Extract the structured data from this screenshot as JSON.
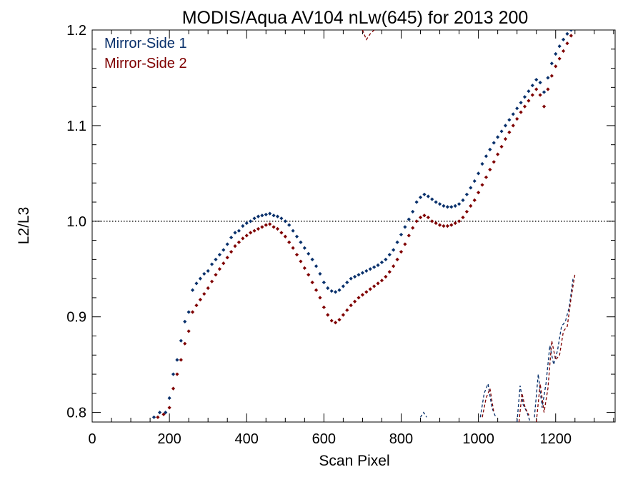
{
  "chart_data": {
    "type": "scatter",
    "title": "MODIS/Aqua AV104 nLw(645) for 2013 200",
    "xlabel": "Scan Pixel",
    "ylabel": "L2/L3",
    "xlim": [
      0,
      1354
    ],
    "ylim": [
      0.79,
      1.2
    ],
    "x_ticks": [
      0,
      200,
      400,
      600,
      800,
      1000,
      1200
    ],
    "y_ticks": [
      0.8,
      0.9,
      1.0,
      1.1,
      1.2
    ],
    "reference_line": 1.0,
    "grid": false,
    "legend_position": "top-left",
    "series": [
      {
        "name": "Mirror-Side 1",
        "color": "#08306b",
        "points": [
          [
            160,
            0.795
          ],
          [
            175,
            0.8
          ],
          [
            190,
            0.8
          ],
          [
            200,
            0.815
          ],
          [
            210,
            0.84
          ],
          [
            220,
            0.855
          ],
          [
            230,
            0.875
          ],
          [
            240,
            0.895
          ],
          [
            250,
            0.905
          ],
          [
            260,
            0.928
          ],
          [
            270,
            0.935
          ],
          [
            280,
            0.94
          ],
          [
            290,
            0.945
          ],
          [
            300,
            0.948
          ],
          [
            310,
            0.955
          ],
          [
            320,
            0.96
          ],
          [
            330,
            0.965
          ],
          [
            340,
            0.97
          ],
          [
            350,
            0.976
          ],
          [
            360,
            0.983
          ],
          [
            370,
            0.988
          ],
          [
            380,
            0.99
          ],
          [
            390,
            0.995
          ],
          [
            400,
            0.998
          ],
          [
            410,
            1.0
          ],
          [
            420,
            1.003
          ],
          [
            430,
            1.005
          ],
          [
            440,
            1.006
          ],
          [
            450,
            1.007
          ],
          [
            460,
            1.008
          ],
          [
            470,
            1.006
          ],
          [
            480,
            1.005
          ],
          [
            490,
            1.003
          ],
          [
            500,
            1.0
          ],
          [
            510,
            0.996
          ],
          [
            520,
            0.99
          ],
          [
            530,
            0.984
          ],
          [
            540,
            0.978
          ],
          [
            550,
            0.972
          ],
          [
            560,
            0.966
          ],
          [
            570,
            0.96
          ],
          [
            580,
            0.953
          ],
          [
            590,
            0.945
          ],
          [
            600,
            0.936
          ],
          [
            610,
            0.93
          ],
          [
            620,
            0.927
          ],
          [
            630,
            0.926
          ],
          [
            640,
            0.928
          ],
          [
            650,
            0.932
          ],
          [
            660,
            0.936
          ],
          [
            670,
            0.94
          ],
          [
            680,
            0.942
          ],
          [
            690,
            0.944
          ],
          [
            700,
            0.946
          ],
          [
            710,
            0.948
          ],
          [
            720,
            0.95
          ],
          [
            730,
            0.952
          ],
          [
            740,
            0.954
          ],
          [
            750,
            0.957
          ],
          [
            760,
            0.96
          ],
          [
            770,
            0.965
          ],
          [
            780,
            0.97
          ],
          [
            790,
            0.978
          ],
          [
            800,
            0.986
          ],
          [
            810,
            0.994
          ],
          [
            820,
            1.002
          ],
          [
            830,
            1.01
          ],
          [
            840,
            1.02
          ],
          [
            850,
            1.025
          ],
          [
            860,
            1.028
          ],
          [
            870,
            1.026
          ],
          [
            880,
            1.023
          ],
          [
            890,
            1.02
          ],
          [
            900,
            1.018
          ],
          [
            910,
            1.016
          ],
          [
            920,
            1.015
          ],
          [
            930,
            1.015
          ],
          [
            940,
            1.016
          ],
          [
            950,
            1.018
          ],
          [
            960,
            1.022
          ],
          [
            970,
            1.028
          ],
          [
            980,
            1.035
          ],
          [
            990,
            1.042
          ],
          [
            1000,
            1.05
          ],
          [
            1010,
            1.06
          ],
          [
            1020,
            1.068
          ],
          [
            1030,
            1.075
          ],
          [
            1040,
            1.082
          ],
          [
            1050,
            1.088
          ],
          [
            1060,
            1.094
          ],
          [
            1070,
            1.1
          ],
          [
            1080,
            1.106
          ],
          [
            1090,
            1.112
          ],
          [
            1100,
            1.118
          ],
          [
            1110,
            1.124
          ],
          [
            1120,
            1.13
          ],
          [
            1130,
            1.136
          ],
          [
            1140,
            1.142
          ],
          [
            1150,
            1.148
          ],
          [
            1160,
            1.145
          ],
          [
            1170,
            1.135
          ],
          [
            1180,
            1.15
          ],
          [
            1190,
            1.165
          ],
          [
            1200,
            1.175
          ],
          [
            1210,
            1.183
          ],
          [
            1220,
            1.19
          ],
          [
            1230,
            1.196
          ],
          [
            1240,
            1.2
          ]
        ]
      },
      {
        "name": "Mirror-Side 2",
        "color": "#7f0000",
        "points": [
          [
            170,
            0.795
          ],
          [
            185,
            0.798
          ],
          [
            200,
            0.805
          ],
          [
            210,
            0.825
          ],
          [
            220,
            0.84
          ],
          [
            230,
            0.855
          ],
          [
            240,
            0.872
          ],
          [
            250,
            0.885
          ],
          [
            260,
            0.905
          ],
          [
            270,
            0.912
          ],
          [
            280,
            0.918
          ],
          [
            290,
            0.924
          ],
          [
            300,
            0.93
          ],
          [
            310,
            0.937
          ],
          [
            320,
            0.944
          ],
          [
            330,
            0.95
          ],
          [
            340,
            0.956
          ],
          [
            350,
            0.962
          ],
          [
            360,
            0.968
          ],
          [
            370,
            0.974
          ],
          [
            380,
            0.978
          ],
          [
            390,
            0.982
          ],
          [
            400,
            0.985
          ],
          [
            410,
            0.988
          ],
          [
            420,
            0.99
          ],
          [
            430,
            0.992
          ],
          [
            440,
            0.994
          ],
          [
            450,
            0.996
          ],
          [
            460,
            0.997
          ],
          [
            470,
            0.994
          ],
          [
            480,
            0.992
          ],
          [
            490,
            0.988
          ],
          [
            500,
            0.984
          ],
          [
            510,
            0.978
          ],
          [
            520,
            0.972
          ],
          [
            530,
            0.965
          ],
          [
            540,
            0.958
          ],
          [
            550,
            0.951
          ],
          [
            560,
            0.944
          ],
          [
            570,
            0.936
          ],
          [
            580,
            0.928
          ],
          [
            590,
            0.92
          ],
          [
            600,
            0.91
          ],
          [
            610,
            0.902
          ],
          [
            620,
            0.896
          ],
          [
            630,
            0.894
          ],
          [
            640,
            0.897
          ],
          [
            650,
            0.902
          ],
          [
            660,
            0.907
          ],
          [
            670,
            0.912
          ],
          [
            680,
            0.916
          ],
          [
            690,
            0.92
          ],
          [
            700,
            0.923
          ],
          [
            710,
            0.926
          ],
          [
            720,
            0.929
          ],
          [
            730,
            0.932
          ],
          [
            740,
            0.935
          ],
          [
            750,
            0.938
          ],
          [
            760,
            0.942
          ],
          [
            770,
            0.947
          ],
          [
            780,
            0.953
          ],
          [
            790,
            0.96
          ],
          [
            800,
            0.968
          ],
          [
            810,
            0.976
          ],
          [
            820,
            0.985
          ],
          [
            830,
            0.993
          ],
          [
            840,
            1.0
          ],
          [
            850,
            1.004
          ],
          [
            860,
            1.006
          ],
          [
            870,
            1.004
          ],
          [
            880,
            1.0
          ],
          [
            890,
            0.998
          ],
          [
            900,
            0.996
          ],
          [
            910,
            0.995
          ],
          [
            920,
            0.995
          ],
          [
            930,
            0.996
          ],
          [
            940,
            0.998
          ],
          [
            950,
            1.0
          ],
          [
            960,
            1.004
          ],
          [
            970,
            1.01
          ],
          [
            980,
            1.016
          ],
          [
            990,
            1.022
          ],
          [
            1000,
            1.03
          ],
          [
            1010,
            1.038
          ],
          [
            1020,
            1.046
          ],
          [
            1030,
            1.054
          ],
          [
            1040,
            1.062
          ],
          [
            1050,
            1.07
          ],
          [
            1060,
            1.078
          ],
          [
            1070,
            1.086
          ],
          [
            1080,
            1.093
          ],
          [
            1090,
            1.1
          ],
          [
            1100,
            1.107
          ],
          [
            1110,
            1.114
          ],
          [
            1120,
            1.12
          ],
          [
            1130,
            1.126
          ],
          [
            1140,
            1.132
          ],
          [
            1150,
            1.138
          ],
          [
            1160,
            1.132
          ],
          [
            1170,
            1.12
          ],
          [
            1180,
            1.138
          ],
          [
            1190,
            1.152
          ],
          [
            1200,
            1.162
          ],
          [
            1210,
            1.17
          ],
          [
            1220,
            1.178
          ],
          [
            1230,
            1.186
          ],
          [
            1240,
            1.194
          ]
        ]
      }
    ],
    "dashed_series": [
      {
        "color": "#7f0000",
        "points": [
          [
            700,
            1.2
          ],
          [
            710,
            1.19
          ],
          [
            720,
            1.196
          ],
          [
            730,
            1.2
          ]
        ]
      },
      {
        "color": "#08306b",
        "points": [
          [
            850,
            0.795
          ],
          [
            858,
            0.8
          ],
          [
            866,
            0.795
          ]
        ]
      },
      {
        "color": "#08306b",
        "points": [
          [
            1005,
            0.795
          ],
          [
            1015,
            0.82
          ],
          [
            1025,
            0.83
          ],
          [
            1035,
            0.805
          ],
          [
            1045,
            0.795
          ]
        ]
      },
      {
        "color": "#7f0000",
        "points": [
          [
            1010,
            0.795
          ],
          [
            1020,
            0.815
          ],
          [
            1030,
            0.825
          ],
          [
            1040,
            0.8
          ]
        ]
      },
      {
        "color": "#08306b",
        "points": [
          [
            1100,
            0.79
          ],
          [
            1108,
            0.828
          ],
          [
            1116,
            0.808
          ],
          [
            1126,
            0.8
          ],
          [
            1134,
            0.79
          ]
        ]
      },
      {
        "color": "#7f0000",
        "points": [
          [
            1105,
            0.79
          ],
          [
            1113,
            0.82
          ],
          [
            1121,
            0.805
          ],
          [
            1131,
            0.797
          ]
        ]
      },
      {
        "color": "#08306b",
        "points": [
          [
            1145,
            0.795
          ],
          [
            1155,
            0.84
          ],
          [
            1165,
            0.805
          ],
          [
            1175,
            0.83
          ],
          [
            1185,
            0.87
          ],
          [
            1195,
            0.85
          ],
          [
            1205,
            0.865
          ],
          [
            1215,
            0.89
          ],
          [
            1225,
            0.895
          ],
          [
            1235,
            0.91
          ],
          [
            1245,
            0.94
          ]
        ]
      },
      {
        "color": "#7f0000",
        "points": [
          [
            1150,
            0.79
          ],
          [
            1160,
            0.83
          ],
          [
            1170,
            0.8
          ],
          [
            1180,
            0.825
          ],
          [
            1190,
            0.875
          ],
          [
            1200,
            0.855
          ],
          [
            1210,
            0.86
          ],
          [
            1220,
            0.885
          ],
          [
            1230,
            0.89
          ],
          [
            1240,
            0.92
          ],
          [
            1250,
            0.945
          ]
        ]
      }
    ]
  }
}
